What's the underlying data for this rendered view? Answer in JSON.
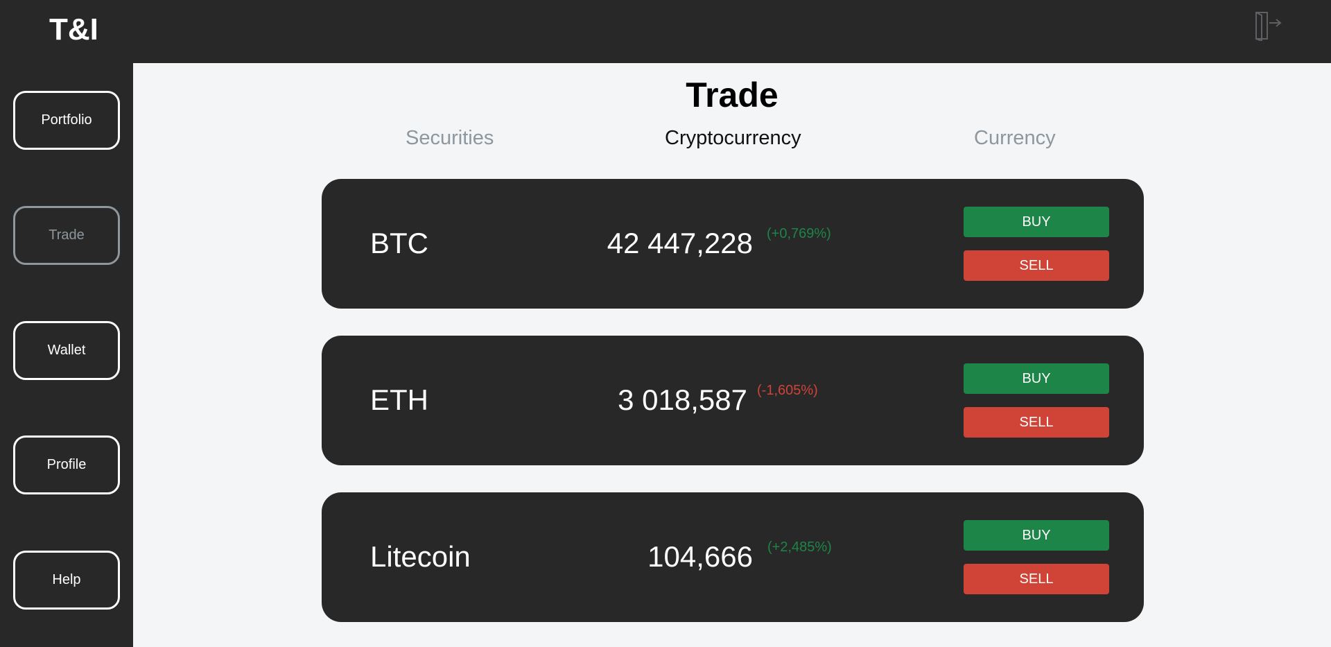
{
  "app": {
    "logo": "T&I"
  },
  "sidebar": {
    "items": [
      {
        "label": "Portfolio"
      },
      {
        "label": "Trade"
      },
      {
        "label": "Wallet"
      },
      {
        "label": "Profile"
      },
      {
        "label": "Help"
      }
    ],
    "active": "Trade"
  },
  "main": {
    "title": "Trade",
    "tabs": [
      {
        "label": "Securities"
      },
      {
        "label": "Cryptocurrency"
      },
      {
        "label": "Currency"
      }
    ],
    "active_tab": "Cryptocurrency",
    "assets": [
      {
        "name": "BTC",
        "price": "42 447,228",
        "change": "(+0,769%)",
        "trend": "up",
        "buy_label": "BUY",
        "sell_label": "SELL"
      },
      {
        "name": "ETH",
        "price": "3 018,587",
        "change": "(-1,605%)",
        "trend": "down",
        "buy_label": "BUY",
        "sell_label": "SELL"
      },
      {
        "name": "Litecoin",
        "price": "104,666",
        "change": "(+2,485%)",
        "trend": "up",
        "buy_label": "BUY",
        "sell_label": "SELL"
      }
    ]
  },
  "colors": {
    "up": "#1d8548",
    "down": "#cf4437",
    "panel": "#282828",
    "background": "#f4f5f7"
  },
  "icons": {
    "logout": "logout-door-icon"
  }
}
